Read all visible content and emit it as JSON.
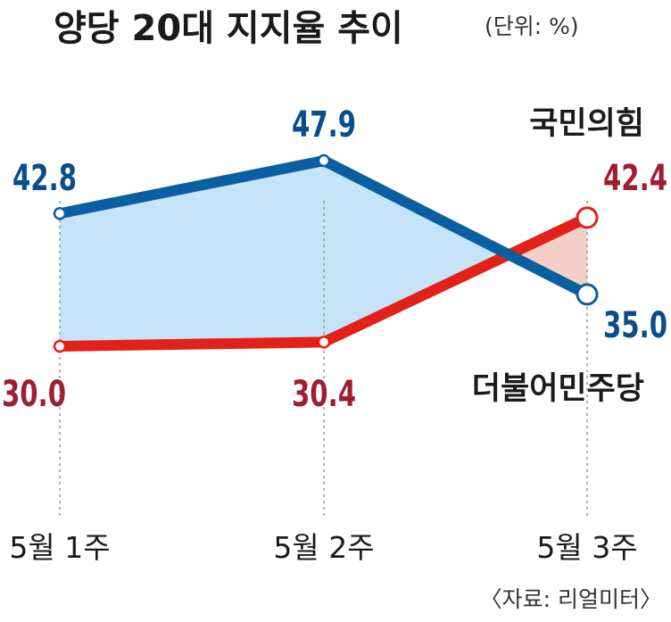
{
  "chart_data": {
    "type": "line",
    "title": "양당 20대 지지율 추이",
    "unit": "(단위: %)",
    "categories": [
      "5월 1주",
      "5월 2주",
      "5월 3주"
    ],
    "series": [
      {
        "name": "국민의힘",
        "values": [
          42.8,
          47.9,
          35.0
        ],
        "value_labels": [
          "42.8",
          "47.9",
          "35.0"
        ],
        "color": "#0a5fa0",
        "label_color": "#0a4d8c"
      },
      {
        "name": "더불어민주당",
        "values": [
          30.0,
          30.4,
          42.4
        ],
        "value_labels": [
          "30.0",
          "30.4",
          "42.4"
        ],
        "color": "#e32119",
        "label_color": "#9e1f32"
      }
    ],
    "fill_colors": {
      "lead_ppp": "#c6e3f7",
      "lead_dp": "#f4cfc7"
    },
    "grid": false,
    "source": "〈자료: 리얼미터〉"
  }
}
